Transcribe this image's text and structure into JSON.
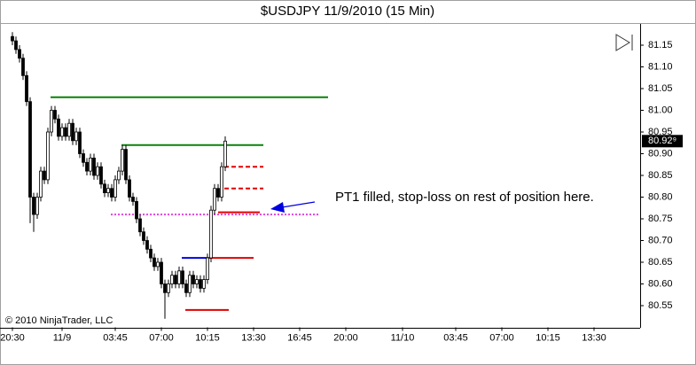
{
  "chart_data": {
    "type": "candlestick",
    "title": "$USDJPY  11/9/2010 (15 Min)",
    "copyright": "© 2010 NinjaTrader, LLC",
    "annotation": "PT1 filled, stop-loss on rest of position here.",
    "x": [
      -3.5,
      -3.25,
      -3,
      -2.75,
      -2.5,
      -2.25,
      -2,
      -1.75,
      -1.5,
      -1.25,
      -1,
      -0.75,
      -0.5,
      -0.25,
      0,
      0.25,
      0.5,
      0.75,
      1,
      1.25,
      1.5,
      1.75,
      2,
      2.25,
      2.5,
      2.75,
      3,
      3.25,
      3.5,
      3.75,
      4,
      4.25,
      4.5,
      4.75,
      5,
      5.25,
      5.5,
      5.75,
      6,
      6.25,
      6.5,
      6.75,
      7,
      7.25,
      7.5,
      7.75,
      8,
      8.25,
      8.5,
      8.75,
      9,
      9.25,
      9.5,
      9.75,
      10,
      10.25,
      10.5,
      10.75,
      11,
      11.25,
      11.5
    ],
    "open": [
      81.17,
      81.16,
      81.14,
      81.12,
      81.08,
      81.02,
      80.8,
      80.76,
      80.8,
      80.86,
      80.84,
      80.95,
      81.0,
      80.98,
      80.94,
      80.96,
      80.94,
      80.97,
      80.93,
      80.95,
      80.9,
      80.88,
      80.86,
      80.89,
      80.85,
      80.87,
      80.83,
      80.81,
      80.82,
      80.8,
      80.84,
      80.86,
      80.91,
      80.84,
      80.8,
      80.79,
      80.75,
      80.72,
      80.7,
      80.68,
      80.66,
      80.64,
      80.65,
      80.6,
      80.58,
      80.6,
      80.62,
      80.6,
      80.63,
      80.6,
      80.58,
      80.62,
      80.6,
      80.61,
      80.59,
      80.61,
      80.66,
      80.77,
      80.82,
      80.8,
      80.87
    ],
    "high": [
      81.18,
      81.17,
      81.15,
      81.13,
      81.09,
      81.03,
      80.81,
      80.81,
      80.87,
      80.87,
      80.96,
      81.01,
      81.01,
      80.99,
      80.97,
      80.97,
      80.98,
      80.98,
      80.96,
      80.96,
      80.91,
      80.89,
      80.9,
      80.9,
      80.88,
      80.88,
      80.84,
      80.83,
      80.83,
      80.85,
      80.87,
      80.92,
      80.92,
      80.85,
      80.81,
      80.8,
      80.76,
      80.73,
      80.71,
      80.69,
      80.67,
      80.66,
      80.66,
      80.61,
      80.61,
      80.63,
      80.63,
      80.64,
      80.64,
      80.61,
      80.63,
      80.63,
      80.62,
      80.62,
      80.62,
      80.67,
      80.78,
      80.83,
      80.83,
      80.88,
      80.94
    ],
    "low": [
      81.15,
      81.13,
      81.11,
      81.07,
      81.01,
      80.74,
      80.72,
      80.75,
      80.79,
      80.83,
      80.83,
      80.94,
      80.97,
      80.93,
      80.93,
      80.93,
      80.93,
      80.92,
      80.92,
      80.89,
      80.87,
      80.85,
      80.85,
      80.84,
      80.84,
      80.82,
      80.8,
      80.8,
      80.79,
      80.79,
      80.83,
      80.85,
      80.83,
      80.79,
      80.78,
      80.74,
      80.71,
      80.69,
      80.67,
      80.65,
      80.63,
      80.63,
      80.59,
      80.52,
      80.57,
      80.59,
      80.59,
      80.59,
      80.59,
      80.57,
      80.57,
      80.59,
      80.59,
      80.58,
      80.58,
      80.6,
      80.65,
      80.76,
      80.79,
      80.79,
      80.86
    ],
    "close": [
      81.16,
      81.14,
      81.12,
      81.08,
      81.02,
      80.8,
      80.76,
      80.8,
      80.86,
      80.84,
      80.95,
      81.0,
      80.98,
      80.94,
      80.96,
      80.94,
      80.97,
      80.93,
      80.95,
      80.9,
      80.88,
      80.86,
      80.89,
      80.85,
      80.87,
      80.83,
      80.81,
      80.82,
      80.8,
      80.84,
      80.86,
      80.91,
      80.84,
      80.8,
      80.79,
      80.75,
      80.72,
      80.7,
      80.68,
      80.66,
      80.64,
      80.65,
      80.6,
      80.58,
      80.6,
      80.62,
      80.6,
      80.63,
      80.6,
      80.58,
      80.62,
      80.6,
      80.61,
      80.59,
      80.61,
      80.66,
      80.77,
      80.82,
      80.8,
      80.87,
      80.929
    ],
    "last_price": {
      "value": 80.929,
      "label": "80.92⁹"
    },
    "levels": [
      {
        "value": 81.03,
        "x": [
          -0.81,
          18.75
        ],
        "color": "#0a820a",
        "style": "solid"
      },
      {
        "value": 80.92,
        "x": [
          4.19,
          14.19
        ],
        "color": "#0a820a",
        "style": "solid"
      },
      {
        "value": 80.87,
        "x": [
          11.44,
          14.19
        ],
        "color": "#e00000",
        "style": "dashed"
      },
      {
        "value": 80.82,
        "x": [
          11.44,
          14.19
        ],
        "color": "#e00000",
        "style": "dashed"
      },
      {
        "value": 80.765,
        "x": [
          11.0,
          13.94
        ],
        "color": "#e00000",
        "style": "solid"
      },
      {
        "value": 80.76,
        "x": [
          3.44,
          18.13
        ],
        "color": "#e040e0",
        "style": "dotted"
      },
      {
        "value": 80.66,
        "x": [
          8.44,
          10.19
        ],
        "color": "#0000e0",
        "style": "solid"
      },
      {
        "value": 80.66,
        "x": [
          10.19,
          13.5
        ],
        "color": "#e00000",
        "style": "solid"
      },
      {
        "value": 80.54,
        "x": [
          8.69,
          11.75
        ],
        "color": "#e00000",
        "style": "solid"
      }
    ],
    "up_color": "#ffffff",
    "down_color": "#000000",
    "xlim": [
      -4.375,
      40.75
    ],
    "xticks": [
      {
        "value": -3.5,
        "label": "20:30"
      },
      {
        "value": 0,
        "label": "11/9"
      },
      {
        "value": 3.75,
        "label": "03:45"
      },
      {
        "value": 7,
        "label": "07:00"
      },
      {
        "value": 10.25,
        "label": "10:15"
      },
      {
        "value": 13.5,
        "label": "13:30"
      },
      {
        "value": 16.75,
        "label": "16:45"
      },
      {
        "value": 20,
        "label": "20:00"
      },
      {
        "value": 24,
        "label": "11/10"
      },
      {
        "value": 27.75,
        "label": "03:45"
      },
      {
        "value": 31,
        "label": "07:00"
      },
      {
        "value": 34.25,
        "label": "10:15"
      },
      {
        "value": 37.5,
        "label": "13:30"
      }
    ],
    "ylim": [
      80.5,
      81.2
    ],
    "yticks": [
      80.55,
      {
        "value": 80.6,
        "label": "80.60"
      },
      80.65,
      {
        "value": 80.7,
        "label": "80.70"
      },
      80.75,
      {
        "value": 80.8,
        "label": "80.80"
      },
      80.85,
      {
        "value": 80.9,
        "label": "80.90"
      },
      80.95,
      {
        "value": 81.0,
        "label": "81.00"
      },
      81.05,
      {
        "value": 81.1,
        "label": "81.10"
      },
      81.15
    ]
  }
}
